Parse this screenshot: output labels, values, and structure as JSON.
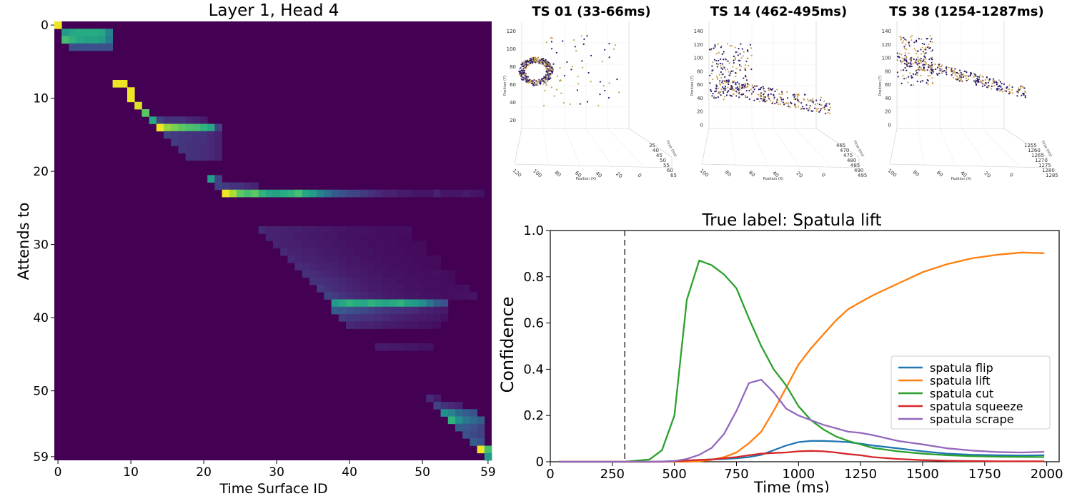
{
  "chart_data": [
    {
      "type": "heatmap",
      "title": "Layer 1, Head 4",
      "xlabel": "Time Surface ID",
      "ylabel": "Attends to",
      "xticks": [
        0,
        10,
        20,
        30,
        40,
        50,
        59
      ],
      "yticks": [
        0,
        10,
        20,
        30,
        40,
        50,
        59
      ],
      "size": 60,
      "colormap": "viridis",
      "bands": [
        {
          "row": 0,
          "from": 0,
          "to": 0,
          "values": [
            0.98
          ]
        },
        {
          "row": 1,
          "from": 1,
          "to": 7,
          "values": [
            0.55,
            0.6,
            0.62,
            0.62,
            0.62,
            0.6,
            0.45
          ]
        },
        {
          "row": 2,
          "from": 1,
          "to": 7,
          "values": [
            0.7,
            0.65,
            0.6,
            0.58,
            0.58,
            0.55,
            0.42
          ]
        },
        {
          "row": 3,
          "from": 2,
          "to": 7,
          "values": [
            0.25,
            0.25,
            0.25,
            0.25,
            0.25,
            0.25
          ]
        },
        {
          "row": 8,
          "from": 8,
          "to": 9,
          "values": [
            0.98,
            0.98
          ]
        },
        {
          "row": 9,
          "from": 10,
          "to": 10,
          "values": [
            0.98
          ]
        },
        {
          "row": 10,
          "from": 10,
          "to": 10,
          "values": [
            0.98
          ]
        },
        {
          "row": 11,
          "from": 11,
          "to": 11,
          "values": [
            0.95
          ]
        },
        {
          "row": 12,
          "from": 12,
          "to": 12,
          "values": [
            0.75
          ]
        },
        {
          "row": 13,
          "from": 13,
          "to": 20,
          "values": [
            0.6,
            0.2,
            0.15,
            0.15,
            0.15,
            0.12,
            0.1,
            0.08
          ]
        },
        {
          "row": 14,
          "from": 14,
          "to": 22,
          "values": [
            0.98,
            0.85,
            0.8,
            0.75,
            0.72,
            0.7,
            0.65,
            0.6,
            0.2
          ]
        },
        {
          "row": 15,
          "from": 15,
          "to": 22,
          "values": [
            0.2,
            0.18,
            0.17,
            0.16,
            0.15,
            0.15,
            0.12,
            0.1
          ]
        },
        {
          "row": 16,
          "from": 16,
          "to": 22,
          "values": [
            0.18,
            0.16,
            0.15,
            0.14,
            0.14,
            0.12,
            0.1
          ]
        },
        {
          "row": 17,
          "from": 17,
          "to": 22,
          "values": [
            0.16,
            0.15,
            0.14,
            0.13,
            0.12,
            0.1
          ]
        },
        {
          "row": 18,
          "from": 18,
          "to": 22,
          "values": [
            0.15,
            0.14,
            0.13,
            0.12,
            0.1
          ]
        },
        {
          "row": 21,
          "from": 21,
          "to": 22,
          "values": [
            0.55,
            0.2
          ]
        },
        {
          "row": 22,
          "from": 22,
          "to": 27,
          "values": [
            0.2,
            0.18,
            0.15,
            0.15,
            0.12,
            0.1
          ]
        },
        {
          "row": 23,
          "from": 23,
          "to": 58,
          "values": [
            0.98,
            0.88,
            0.75,
            0.7,
            0.75,
            0.65,
            0.6,
            0.58,
            0.62,
            0.65,
            0.7,
            0.6,
            0.55,
            0.45,
            0.38,
            0.3,
            0.25,
            0.22,
            0.2,
            0.18,
            0.15,
            0.12,
            0.1,
            0.1,
            0.08,
            0.08,
            0.06,
            0.06,
            0.06,
            0.1,
            0.06,
            0.06,
            0.06,
            0.08,
            0.06,
            0.05
          ]
        },
        {
          "row": 28,
          "from": 28,
          "to": 48,
          "values": [
            0.12,
            0.1,
            0.1,
            0.1,
            0.09,
            0.09,
            0.08,
            0.08,
            0.07,
            0.07,
            0.06,
            0.06,
            0.05,
            0.05,
            0.05,
            0.05,
            0.04,
            0.04,
            0.04,
            0.04,
            0.04
          ]
        },
        {
          "row": 29,
          "from": 29,
          "to": 48,
          "values": [
            0.1,
            0.1,
            0.09,
            0.09,
            0.08,
            0.08,
            0.07,
            0.07,
            0.06,
            0.06,
            0.05,
            0.05,
            0.05,
            0.04,
            0.04,
            0.04,
            0.04,
            0.04,
            0.03,
            0.03
          ]
        },
        {
          "row": 30,
          "from": 30,
          "to": 50,
          "values": [
            0.1,
            0.1,
            0.09,
            0.09,
            0.08,
            0.08,
            0.07,
            0.07,
            0.06,
            0.06,
            0.05,
            0.05,
            0.05,
            0.04,
            0.04,
            0.04,
            0.04,
            0.03,
            0.03,
            0.03,
            0.03
          ]
        },
        {
          "row": 31,
          "from": 31,
          "to": 50,
          "values": [
            0.12,
            0.1,
            0.1,
            0.09,
            0.09,
            0.08,
            0.07,
            0.07,
            0.06,
            0.06,
            0.05,
            0.05,
            0.05,
            0.04,
            0.04,
            0.04,
            0.04,
            0.03,
            0.03,
            0.03
          ]
        },
        {
          "row": 32,
          "from": 32,
          "to": 52,
          "values": [
            0.12,
            0.11,
            0.1,
            0.1,
            0.09,
            0.08,
            0.08,
            0.07,
            0.06,
            0.06,
            0.05,
            0.05,
            0.05,
            0.04,
            0.04,
            0.04,
            0.04,
            0.03,
            0.03,
            0.03,
            0.03
          ]
        },
        {
          "row": 33,
          "from": 33,
          "to": 52,
          "values": [
            0.13,
            0.12,
            0.11,
            0.1,
            0.1,
            0.09,
            0.08,
            0.07,
            0.07,
            0.06,
            0.06,
            0.05,
            0.05,
            0.04,
            0.04,
            0.04,
            0.04,
            0.03,
            0.03,
            0.03
          ]
        },
        {
          "row": 34,
          "from": 34,
          "to": 54,
          "values": [
            0.14,
            0.13,
            0.12,
            0.11,
            0.1,
            0.09,
            0.08,
            0.08,
            0.07,
            0.06,
            0.06,
            0.05,
            0.05,
            0.05,
            0.04,
            0.04,
            0.04,
            0.04,
            0.05,
            0.04,
            0.03
          ]
        },
        {
          "row": 35,
          "from": 35,
          "to": 54,
          "values": [
            0.15,
            0.14,
            0.13,
            0.12,
            0.11,
            0.1,
            0.09,
            0.08,
            0.07,
            0.07,
            0.06,
            0.06,
            0.05,
            0.05,
            0.05,
            0.04,
            0.04,
            0.04,
            0.04,
            0.03
          ]
        },
        {
          "row": 36,
          "from": 36,
          "to": 56,
          "values": [
            0.18,
            0.15,
            0.13,
            0.12,
            0.11,
            0.1,
            0.09,
            0.08,
            0.08,
            0.07,
            0.06,
            0.06,
            0.05,
            0.05,
            0.05,
            0.04,
            0.04,
            0.04,
            0.04,
            0.04,
            0.05
          ]
        },
        {
          "row": 37,
          "from": 37,
          "to": 57,
          "values": [
            0.2,
            0.18,
            0.15,
            0.13,
            0.12,
            0.11,
            0.1,
            0.09,
            0.08,
            0.08,
            0.07,
            0.06,
            0.06,
            0.05,
            0.05,
            0.05,
            0.04,
            0.04,
            0.05,
            0.05,
            0.06
          ]
        },
        {
          "row": 38,
          "from": 38,
          "to": 49,
          "values": [
            0.55,
            0.6,
            0.65,
            0.62,
            0.6,
            0.65,
            0.62,
            0.6,
            0.62,
            0.65,
            0.58,
            0.55
          ]
        },
        {
          "row": 38,
          "from": 50,
          "to": 53,
          "values": [
            0.5,
            0.4,
            0.3,
            0.25
          ]
        },
        {
          "row": 39,
          "from": 38,
          "to": 53,
          "values": [
            0.3,
            0.28,
            0.25,
            0.24,
            0.22,
            0.2,
            0.18,
            0.16,
            0.15,
            0.14,
            0.13,
            0.12,
            0.1,
            0.09,
            0.08,
            0.07
          ]
        },
        {
          "row": 40,
          "from": 39,
          "to": 53,
          "values": [
            0.18,
            0.17,
            0.16,
            0.15,
            0.14,
            0.13,
            0.12,
            0.11,
            0.1,
            0.09,
            0.08,
            0.08,
            0.07,
            0.06,
            0.05
          ]
        },
        {
          "row": 41,
          "from": 40,
          "to": 52,
          "values": [
            0.12,
            0.11,
            0.1,
            0.1,
            0.09,
            0.08,
            0.08,
            0.07,
            0.06,
            0.06,
            0.05,
            0.05,
            0.04
          ]
        },
        {
          "row": 44,
          "from": 44,
          "to": 51,
          "values": [
            0.08,
            0.08,
            0.07,
            0.07,
            0.06,
            0.06,
            0.05,
            0.05
          ]
        },
        {
          "row": 51,
          "from": 51,
          "to": 52,
          "values": [
            0.12,
            0.08
          ]
        },
        {
          "row": 52,
          "from": 52,
          "to": 55,
          "values": [
            0.2,
            0.15,
            0.12,
            0.1
          ]
        },
        {
          "row": 53,
          "from": 53,
          "to": 57,
          "values": [
            0.5,
            0.45,
            0.35,
            0.3,
            0.25
          ]
        },
        {
          "row": 54,
          "from": 54,
          "to": 58,
          "values": [
            0.65,
            0.5,
            0.4,
            0.35,
            0.3
          ]
        },
        {
          "row": 55,
          "from": 55,
          "to": 58,
          "values": [
            0.3,
            0.28,
            0.25,
            0.2
          ]
        },
        {
          "row": 56,
          "from": 56,
          "to": 58,
          "values": [
            0.25,
            0.22,
            0.2
          ]
        },
        {
          "row": 57,
          "from": 57,
          "to": 58,
          "values": [
            0.3,
            0.25
          ]
        },
        {
          "row": 58,
          "from": 58,
          "to": 59,
          "values": [
            0.98,
            0.7
          ]
        },
        {
          "row": 59,
          "from": 59,
          "to": 59,
          "values": [
            0.55
          ]
        }
      ]
    },
    {
      "type": "scatter",
      "title": "TS 01 (33-66ms)",
      "axis_labels": {
        "x": "Position (X)",
        "y": "Position (Y)",
        "z": "Time (ms)"
      },
      "vertical_ticks": [
        "120",
        "100",
        "80",
        "60",
        "40",
        "20"
      ],
      "x_ticks": [
        "120",
        "100",
        "80",
        "60",
        "40",
        "20",
        "0"
      ],
      "time_ticks": [
        "35",
        "40",
        "45",
        "50",
        "55",
        "60",
        "65"
      ],
      "colors": [
        "#2a1b6e",
        "#c8a050"
      ]
    },
    {
      "type": "scatter",
      "title": "TS 14 (462-495ms)",
      "axis_labels": {
        "x": "Position (X)",
        "y": "Position (Y)",
        "z": "Time (ms)"
      },
      "vertical_ticks": [
        "140",
        "120",
        "100",
        "80",
        "60",
        "40",
        "20",
        "0"
      ],
      "x_ticks": [
        "100",
        "80",
        "60",
        "40",
        "20",
        "0"
      ],
      "time_ticks": [
        "465",
        "470",
        "475",
        "480",
        "485",
        "490",
        "495"
      ],
      "colors": [
        "#2a1b6e",
        "#c8a050"
      ]
    },
    {
      "type": "scatter",
      "title": "TS 38 (1254-1287ms)",
      "axis_labels": {
        "x": "Position (X)",
        "y": "Position (Y)",
        "z": "Time (ms)"
      },
      "vertical_ticks": [
        "140",
        "120",
        "100",
        "80",
        "60",
        "40",
        "20",
        "0"
      ],
      "x_ticks": [
        "100",
        "80",
        "60",
        "40",
        "20",
        "0"
      ],
      "time_ticks": [
        "1255",
        "1260",
        "1265",
        "1270",
        "1275",
        "1280",
        "1285"
      ],
      "colors": [
        "#2a1b6e",
        "#c8a050"
      ]
    },
    {
      "type": "line",
      "title": "True label: Spatula lift",
      "xlabel": "Time (ms)",
      "ylabel": "Confidence",
      "xlim": [
        0,
        2050
      ],
      "ylim": [
        0,
        1.0
      ],
      "xticks": [
        0,
        250,
        500,
        750,
        1000,
        1250,
        1500,
        1750,
        2000
      ],
      "yticks": [
        0,
        0.2,
        0.4,
        0.6,
        0.8,
        1.0
      ],
      "ytick_labels": [
        "0",
        "0.2",
        "0.4",
        "0.6",
        "0.8",
        "1.0"
      ],
      "vline_x": 300,
      "legend_position": "center-right",
      "x": [
        33,
        100,
        200,
        300,
        400,
        450,
        500,
        550,
        600,
        650,
        700,
        750,
        800,
        850,
        900,
        950,
        1000,
        1050,
        1100,
        1150,
        1200,
        1250,
        1300,
        1400,
        1500,
        1600,
        1700,
        1800,
        1900,
        1990
      ],
      "series": [
        {
          "name": "spatula flip",
          "color": "#1f77b4",
          "values": [
            0,
            0,
            0,
            0,
            0,
            0.001,
            0.003,
            0.005,
            0.008,
            0.01,
            0.012,
            0.015,
            0.02,
            0.03,
            0.05,
            0.07,
            0.085,
            0.09,
            0.09,
            0.088,
            0.085,
            0.078,
            0.07,
            0.058,
            0.045,
            0.035,
            0.03,
            0.028,
            0.027,
            0.028
          ]
        },
        {
          "name": "spatula lift",
          "color": "#ff7f0e",
          "values": [
            0,
            0,
            0,
            0,
            0,
            0,
            0,
            0,
            0.002,
            0.008,
            0.02,
            0.04,
            0.08,
            0.13,
            0.22,
            0.32,
            0.42,
            0.49,
            0.55,
            0.61,
            0.66,
            0.69,
            0.72,
            0.77,
            0.82,
            0.855,
            0.88,
            0.895,
            0.905,
            0.902
          ]
        },
        {
          "name": "spatula cut",
          "color": "#2ca02c",
          "values": [
            0,
            0,
            0,
            0,
            0.01,
            0.05,
            0.2,
            0.7,
            0.87,
            0.85,
            0.81,
            0.75,
            0.62,
            0.5,
            0.4,
            0.33,
            0.24,
            0.18,
            0.14,
            0.11,
            0.09,
            0.075,
            0.06,
            0.045,
            0.035,
            0.028,
            0.024,
            0.022,
            0.021,
            0.02
          ]
        },
        {
          "name": "spatula squeeze",
          "color": "#d62728",
          "values": [
            0,
            0,
            0,
            0,
            0,
            0,
            0.002,
            0.005,
            0.008,
            0.01,
            0.015,
            0.02,
            0.028,
            0.035,
            0.038,
            0.04,
            0.045,
            0.047,
            0.045,
            0.04,
            0.033,
            0.028,
            0.02,
            0.012,
            0.007,
            0.004,
            0.003,
            0.002,
            0.002,
            0.002
          ]
        },
        {
          "name": "spatula scrape",
          "color": "#9467bd",
          "values": [
            0,
            0,
            0,
            0,
            0,
            0,
            0.003,
            0.012,
            0.03,
            0.06,
            0.12,
            0.22,
            0.34,
            0.355,
            0.3,
            0.23,
            0.2,
            0.18,
            0.16,
            0.145,
            0.13,
            0.125,
            0.115,
            0.09,
            0.075,
            0.058,
            0.048,
            0.042,
            0.04,
            0.043
          ]
        }
      ]
    }
  ]
}
